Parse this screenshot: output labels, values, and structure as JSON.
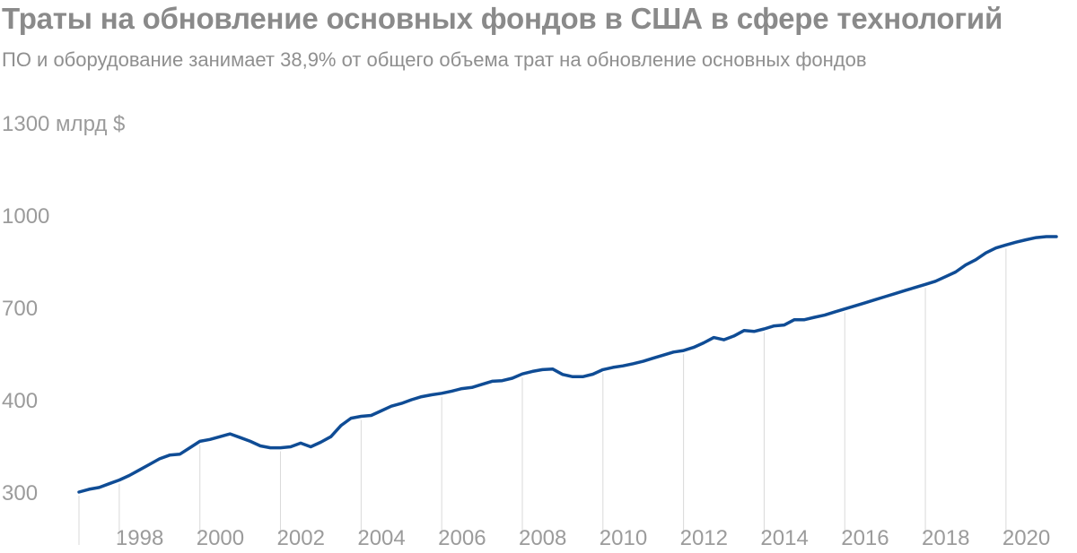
{
  "header": {
    "title": "Траты на обновление основных фондов в США в сфере технологий",
    "subtitle": "ПО и оборудование занимает 38,9% от общего объема трат на обновление основных фондов"
  },
  "chart_data": {
    "type": "line",
    "title": "Траты на обновление основных фондов в США в сфере технологий",
    "subtitle": "ПО и оборудование занимает 38,9% от общего объема трат на обновление основных фондов",
    "ylabel": "",
    "y_ticks": [
      {
        "value": 300,
        "label": "300"
      },
      {
        "value": 400,
        "label": "400"
      },
      {
        "value": 700,
        "label": "700"
      },
      {
        "value": 1000,
        "label": "1000"
      },
      {
        "value": 1300,
        "label": "1300 млрд $"
      }
    ],
    "x_ticks": [
      "1998",
      "2000",
      "2002",
      "2004",
      "2006",
      "2008",
      "2010",
      "2012",
      "2014",
      "2016",
      "2018",
      "2020"
    ],
    "xlim": [
      1997,
      2021.25
    ],
    "grid": "vertical lines at even years",
    "series": [
      {
        "color": "#0f4c95",
        "x": [
          1997.0,
          1997.25,
          1997.5,
          1997.75,
          1998.0,
          1998.25,
          1998.5,
          1998.75,
          1999.0,
          1999.25,
          1999.5,
          1999.75,
          2000.0,
          2000.25,
          2000.5,
          2000.75,
          2001.0,
          2001.25,
          2001.5,
          2001.75,
          2002.0,
          2002.25,
          2002.5,
          2002.75,
          2003.0,
          2003.25,
          2003.5,
          2003.75,
          2004.0,
          2004.25,
          2004.5,
          2004.75,
          2005.0,
          2005.25,
          2005.5,
          2005.75,
          2006.0,
          2006.25,
          2006.5,
          2006.75,
          2007.0,
          2007.25,
          2007.5,
          2007.75,
          2008.0,
          2008.25,
          2008.5,
          2008.75,
          2009.0,
          2009.25,
          2009.5,
          2009.75,
          2010.0,
          2010.25,
          2010.5,
          2010.75,
          2011.0,
          2011.25,
          2011.5,
          2011.75,
          2012.0,
          2012.25,
          2012.5,
          2012.75,
          2013.0,
          2013.25,
          2013.5,
          2013.75,
          2014.0,
          2014.25,
          2014.5,
          2014.75,
          2015.0,
          2015.25,
          2015.5,
          2015.75,
          2016.0,
          2016.25,
          2016.5,
          2016.75,
          2017.0,
          2017.25,
          2017.5,
          2017.75,
          2018.0,
          2018.25,
          2018.5,
          2018.75,
          2019.0,
          2019.25,
          2019.5,
          2019.75,
          2020.0,
          2020.25,
          2020.5,
          2020.75,
          2021.0,
          2021.25
        ],
        "values": [
          300,
          303,
          305,
          309,
          313,
          318,
          324,
          330,
          336,
          340,
          341,
          348,
          355,
          357,
          360,
          363,
          359,
          355,
          350,
          348,
          348,
          349,
          353,
          349,
          354,
          360,
          372,
          380,
          382,
          383,
          388,
          393,
          396,
          400,
          410,
          416,
          421,
          428,
          436,
          440,
          450,
          460,
          462,
          470,
          484,
          492,
          498,
          500,
          482,
          475,
          475,
          483,
          498,
          505,
          510,
          517,
          525,
          535,
          545,
          555,
          560,
          570,
          585,
          602,
          595,
          607,
          625,
          622,
          630,
          640,
          643,
          660,
          660,
          668,
          675,
          685,
          695,
          705,
          715,
          725,
          735,
          745,
          755,
          765,
          775,
          785,
          800,
          815,
          838,
          855,
          877,
          893,
          903,
          912,
          920,
          927,
          930,
          930
        ]
      }
    ]
  }
}
